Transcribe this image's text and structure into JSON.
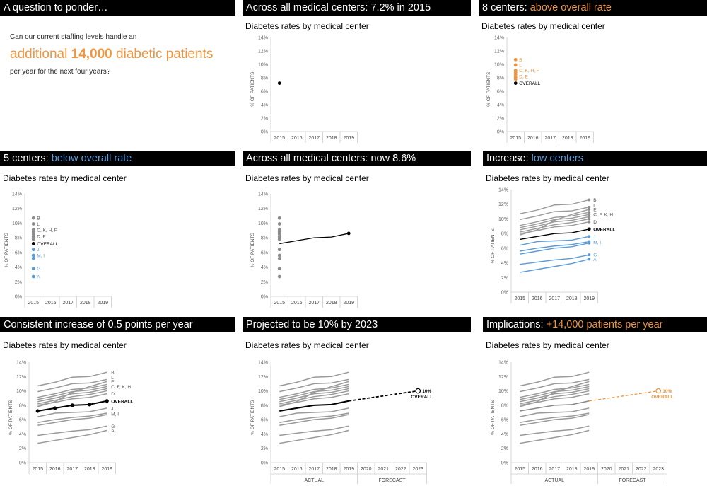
{
  "colors": {
    "orange": "#f0953f",
    "blue": "#5b9bd5",
    "gray": "#8c8c8c",
    "black": "#000000"
  },
  "question": {
    "title": "A question to ponder…",
    "line1": "Can our current staffing levels handle an",
    "big_pre": "additional ",
    "big_num": "14,000",
    "big_post": " diabetic patients",
    "line3": "per year for the next four years?"
  },
  "panels": [
    {
      "title_pre": "Across all medical centers: 7.2% in 2015",
      "title_hl": "",
      "hl": "",
      "subtitle": "Diabetes rates by medical center"
    },
    {
      "title_pre": "8 centers: ",
      "title_hl": "above overall rate",
      "hl": "orange",
      "subtitle": "Diabetes rates by medical center"
    },
    {
      "title_pre": "5 centers: ",
      "title_hl": "below overall rate",
      "hl": "blue",
      "subtitle": "Diabetes rates by medical center"
    },
    {
      "title_pre": "Across all medical centers: now 8.6%",
      "title_hl": "",
      "hl": "",
      "subtitle": "Diabetes rates by medical center"
    },
    {
      "title_pre": "Increase: ",
      "title_hl": "low centers",
      "hl": "blue",
      "subtitle": "Diabetes rates by medical center"
    },
    {
      "title_pre": "Consistent increase of 0.5 points per year",
      "title_hl": "",
      "hl": "",
      "subtitle": "Diabetes rates by medical center"
    },
    {
      "title_pre": "Projected to be 10% by 2023",
      "title_hl": "",
      "hl": "",
      "subtitle": "Diabetes rates by medical center"
    },
    {
      "title_pre": "Implications: ",
      "title_hl": "+14,000 patients per year",
      "hl": "orange",
      "subtitle": "Diabetes rates by medical center"
    }
  ],
  "chart_data": {
    "type": "line",
    "ylabel": "% OF PATIENTS",
    "yticks": [
      "0%",
      "2%",
      "4%",
      "6%",
      "8%",
      "10%",
      "12%",
      "14%"
    ],
    "ylim": [
      0,
      14
    ],
    "x_actual": [
      "2015",
      "2016",
      "2017",
      "2018",
      "2019"
    ],
    "x_forecast": [
      "2020",
      "2021",
      "2022",
      "2023"
    ],
    "group_labels": {
      "actual": "ACTUAL",
      "forecast": "FORECAST"
    },
    "overall": {
      "name": "OVERALL",
      "values": [
        7.2,
        7.6,
        8.0,
        8.1,
        8.6
      ]
    },
    "projection": {
      "from": 8.6,
      "to": 10.0,
      "label_value": "10%",
      "label_name": "OVERALL"
    },
    "centers_2015": {
      "above": [
        {
          "label": "B",
          "value": 10.7
        },
        {
          "label": "L",
          "value": 9.9
        },
        {
          "label": "C, K, H, F",
          "value": 9.1
        },
        {
          "label": "",
          "value": 8.8
        },
        {
          "label": "",
          "value": 8.5
        },
        {
          "label": "D, E",
          "value": 8.2
        },
        {
          "label": "",
          "value": 8.0
        },
        {
          "label": "",
          "value": 7.8
        }
      ],
      "below": [
        {
          "label": "J",
          "value": 6.4
        },
        {
          "label": "M, I",
          "value": 5.6
        },
        {
          "label": "",
          "value": 5.2
        },
        {
          "label": "G",
          "value": 3.8
        },
        {
          "label": "A",
          "value": 2.7
        }
      ]
    },
    "centers": [
      {
        "name": "B",
        "group": "above",
        "values": [
          10.7,
          11.2,
          11.9,
          12.0,
          12.6
        ]
      },
      {
        "name": "L",
        "group": "above",
        "values": [
          9.9,
          10.4,
          11.0,
          11.1,
          11.6
        ]
      },
      {
        "name": "E",
        "group": "above",
        "values": [
          7.8,
          8.5,
          9.8,
          10.6,
          11.3
        ]
      },
      {
        "name": "C",
        "group": "above",
        "values": [
          9.1,
          9.6,
          10.2,
          10.4,
          10.9
        ]
      },
      {
        "name": "K",
        "group": "above",
        "values": [
          8.8,
          9.3,
          9.9,
          10.1,
          10.6
        ]
      },
      {
        "name": "H",
        "group": "above",
        "values": [
          8.5,
          9.0,
          9.6,
          9.8,
          10.3
        ]
      },
      {
        "name": "F",
        "group": "above",
        "values": [
          8.2,
          8.7,
          9.2,
          9.5,
          10.0
        ]
      },
      {
        "name": "D",
        "group": "above",
        "values": [
          8.0,
          8.4,
          8.9,
          9.1,
          9.6
        ]
      },
      {
        "name": "J",
        "group": "below",
        "values": [
          6.4,
          6.9,
          7.0,
          7.1,
          7.6
        ]
      },
      {
        "name": "M",
        "group": "below",
        "values": [
          5.6,
          6.0,
          6.3,
          6.5,
          6.9
        ]
      },
      {
        "name": "I",
        "group": "below",
        "values": [
          5.2,
          5.6,
          6.0,
          6.2,
          6.7
        ]
      },
      {
        "name": "G",
        "group": "below",
        "values": [
          3.8,
          4.1,
          4.4,
          4.6,
          5.1
        ]
      },
      {
        "name": "A",
        "group": "below",
        "values": [
          2.7,
          3.1,
          3.5,
          3.9,
          4.5
        ]
      }
    ],
    "right_labels": [
      {
        "text": "B",
        "value": 12.6
      },
      {
        "text": "L",
        "value": 11.9
      },
      {
        "text": "E",
        "value": 11.3
      },
      {
        "text": "C, F, K, H",
        "value": 10.6
      },
      {
        "text": "D",
        "value": 9.6
      },
      {
        "text": "OVERALL",
        "value": 8.6
      },
      {
        "text": "J",
        "value": 7.6
      },
      {
        "text": "M, I",
        "value": 6.8
      },
      {
        "text": "G",
        "value": 5.1
      },
      {
        "text": "A",
        "value": 4.5
      }
    ]
  }
}
